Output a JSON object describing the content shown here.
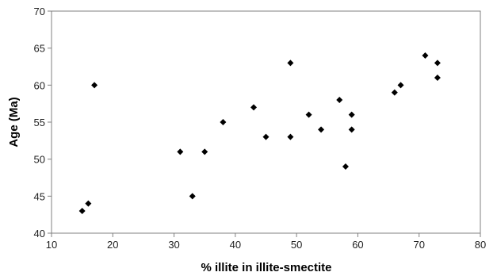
{
  "chart_data": {
    "type": "scatter",
    "title": "",
    "xlabel": "% illite in illite-smectite",
    "ylabel": "Age (Ma)",
    "xlim": [
      10,
      80
    ],
    "ylim": [
      40,
      70
    ],
    "x_ticks": [
      10,
      20,
      30,
      40,
      50,
      60,
      70,
      80
    ],
    "y_ticks": [
      40,
      45,
      50,
      55,
      60,
      65,
      70
    ],
    "grid": false,
    "legend": "none",
    "marker": "diamond",
    "marker_color": "#000000",
    "series": [
      {
        "points": [
          {
            "x": 15,
            "y": 43
          },
          {
            "x": 16,
            "y": 44
          },
          {
            "x": 17,
            "y": 60
          },
          {
            "x": 31,
            "y": 51
          },
          {
            "x": 33,
            "y": 45
          },
          {
            "x": 35,
            "y": 51
          },
          {
            "x": 38,
            "y": 55
          },
          {
            "x": 43,
            "y": 57
          },
          {
            "x": 45,
            "y": 53
          },
          {
            "x": 49,
            "y": 63
          },
          {
            "x": 49,
            "y": 53
          },
          {
            "x": 52,
            "y": 56
          },
          {
            "x": 54,
            "y": 54
          },
          {
            "x": 57,
            "y": 58
          },
          {
            "x": 58,
            "y": 49
          },
          {
            "x": 59,
            "y": 56
          },
          {
            "x": 59,
            "y": 54
          },
          {
            "x": 66,
            "y": 59
          },
          {
            "x": 67,
            "y": 60
          },
          {
            "x": 71,
            "y": 64
          },
          {
            "x": 73,
            "y": 63
          },
          {
            "x": 73,
            "y": 61
          }
        ]
      }
    ]
  }
}
